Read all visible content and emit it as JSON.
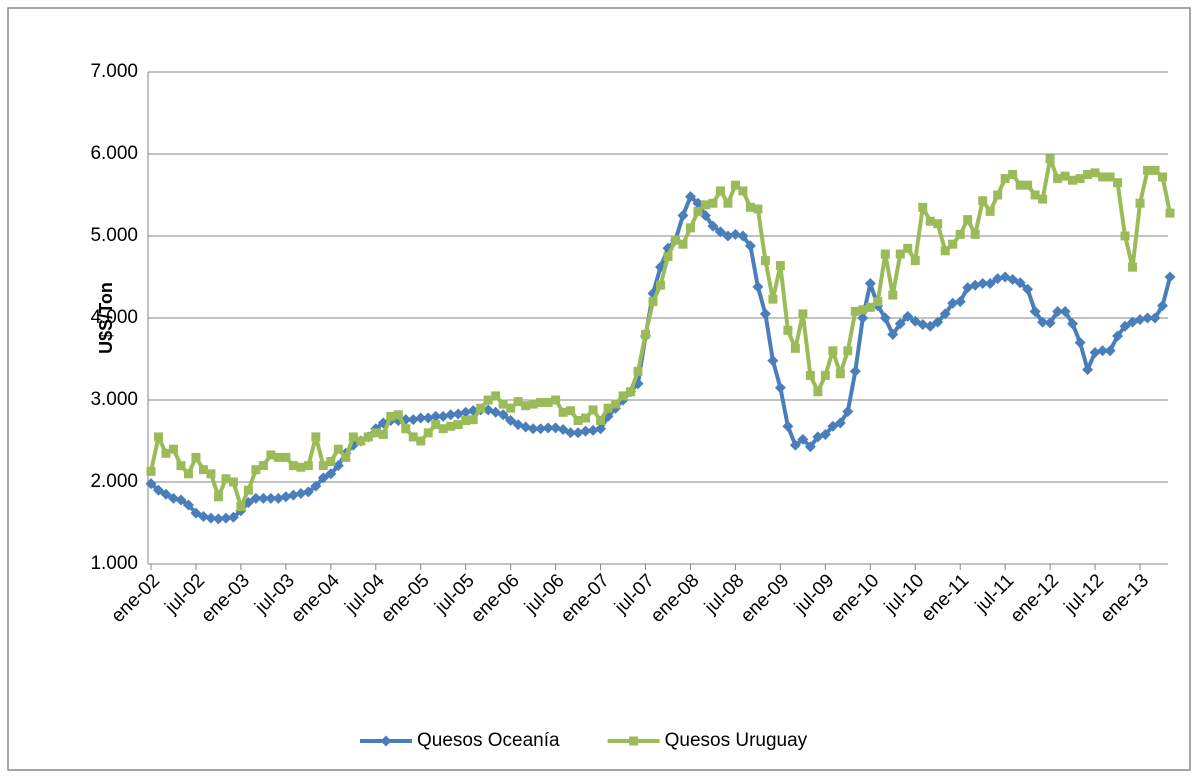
{
  "chart_data": {
    "type": "line",
    "y_label": "U$S/Ton",
    "categories": [
      "ene-02",
      null,
      null,
      null,
      null,
      null,
      "jul-02",
      null,
      null,
      null,
      null,
      null,
      "ene-03",
      null,
      null,
      null,
      null,
      null,
      "jul-03",
      null,
      null,
      null,
      null,
      null,
      "ene-04",
      null,
      null,
      null,
      null,
      null,
      "jul-04",
      null,
      null,
      null,
      null,
      null,
      "ene-05",
      null,
      null,
      null,
      null,
      null,
      "jul-05",
      null,
      null,
      null,
      null,
      null,
      "ene-06",
      null,
      null,
      null,
      null,
      null,
      "jul-06",
      null,
      null,
      null,
      null,
      null,
      "ene-07",
      null,
      null,
      null,
      null,
      null,
      "jul-07",
      null,
      null,
      null,
      null,
      null,
      "ene-08",
      null,
      null,
      null,
      null,
      null,
      "jul-08",
      null,
      null,
      null,
      null,
      null,
      "ene-09",
      null,
      null,
      null,
      null,
      null,
      "jul-09",
      null,
      null,
      null,
      null,
      null,
      "ene-10",
      null,
      null,
      null,
      null,
      null,
      "jul-10",
      null,
      null,
      null,
      null,
      null,
      "ene-11",
      null,
      null,
      null,
      null,
      null,
      "jul-11",
      null,
      null,
      null,
      null,
      null,
      "ene-12",
      null,
      null,
      null,
      null,
      null,
      "jul-12",
      null,
      null,
      null,
      null,
      null,
      "ene-13",
      null,
      null,
      null,
      null
    ],
    "series": [
      {
        "name": "Quesos Oceanía",
        "color": "#4a7ebb",
        "marker": "diamond",
        "values": [
          1980,
          1900,
          1850,
          1800,
          1780,
          1720,
          1620,
          1580,
          1560,
          1550,
          1560,
          1570,
          1650,
          1750,
          1800,
          1800,
          1800,
          1800,
          1820,
          1840,
          1860,
          1880,
          1950,
          2050,
          2100,
          2200,
          2350,
          2450,
          2500,
          2550,
          2650,
          2720,
          2750,
          2750,
          2760,
          2760,
          2780,
          2780,
          2800,
          2800,
          2820,
          2830,
          2850,
          2870,
          2880,
          2880,
          2850,
          2820,
          2750,
          2700,
          2670,
          2650,
          2650,
          2660,
          2660,
          2640,
          2600,
          2600,
          2620,
          2630,
          2650,
          2800,
          2900,
          3000,
          3100,
          3200,
          3780,
          4300,
          4620,
          4850,
          4950,
          5250,
          5480,
          5400,
          5250,
          5120,
          5050,
          5000,
          5020,
          5000,
          4880,
          4380,
          4050,
          3480,
          3150,
          2680,
          2450,
          2520,
          2430,
          2550,
          2580,
          2680,
          2720,
          2860,
          3350,
          4000,
          4420,
          4150,
          4000,
          3800,
          3930,
          4020,
          3960,
          3920,
          3900,
          3950,
          4050,
          4180,
          4200,
          4370,
          4400,
          4420,
          4420,
          4480,
          4500,
          4470,
          4430,
          4350,
          4080,
          3950,
          3940,
          4080,
          4080,
          3930,
          3700,
          3370,
          3580,
          3600,
          3600,
          3780,
          3900,
          3950,
          3980,
          4000,
          4000,
          4150,
          4500
        ]
      },
      {
        "name": "Quesos Uruguay",
        "color": "#9bbb59",
        "marker": "square",
        "values": [
          2130,
          2550,
          2350,
          2400,
          2200,
          2100,
          2300,
          2150,
          2100,
          1820,
          2040,
          2000,
          1700,
          1900,
          2150,
          2200,
          2330,
          2300,
          2300,
          2200,
          2180,
          2200,
          2550,
          2200,
          2250,
          2400,
          2300,
          2550,
          2500,
          2550,
          2600,
          2580,
          2800,
          2820,
          2650,
          2550,
          2500,
          2600,
          2700,
          2650,
          2680,
          2700,
          2750,
          2760,
          2900,
          3000,
          3050,
          2950,
          2900,
          2980,
          2930,
          2950,
          2970,
          2970,
          3000,
          2850,
          2870,
          2750,
          2780,
          2880,
          2750,
          2900,
          2950,
          3050,
          3100,
          3350,
          3800,
          4200,
          4400,
          4750,
          4950,
          4900,
          5100,
          5300,
          5380,
          5400,
          5550,
          5400,
          5620,
          5550,
          5350,
          5330,
          4700,
          4230,
          4640,
          3850,
          3630,
          4050,
          3300,
          3100,
          3300,
          3600,
          3320,
          3600,
          4080,
          4100,
          4130,
          4200,
          4780,
          4280,
          4780,
          4850,
          4700,
          5350,
          5180,
          5150,
          4820,
          4900,
          5020,
          5200,
          5020,
          5430,
          5300,
          5500,
          5700,
          5750,
          5620,
          5620,
          5500,
          5450,
          5940,
          5700,
          5730,
          5680,
          5700,
          5750,
          5770,
          5720,
          5720,
          5650,
          5000,
          4620,
          5400,
          5800,
          5800,
          5720,
          5280
        ]
      }
    ],
    "ylim": [
      1000,
      7000
    ],
    "yticks": [
      {
        "value": 1000,
        "label": "1.000"
      },
      {
        "value": 2000,
        "label": "2.000"
      },
      {
        "value": 3000,
        "label": "3.000"
      },
      {
        "value": 4000,
        "label": "4.000"
      },
      {
        "value": 5000,
        "label": "5.000"
      },
      {
        "value": 6000,
        "label": "6.000"
      },
      {
        "value": 7000,
        "label": "7.000"
      }
    ],
    "grid": true,
    "legend": "bottom"
  }
}
